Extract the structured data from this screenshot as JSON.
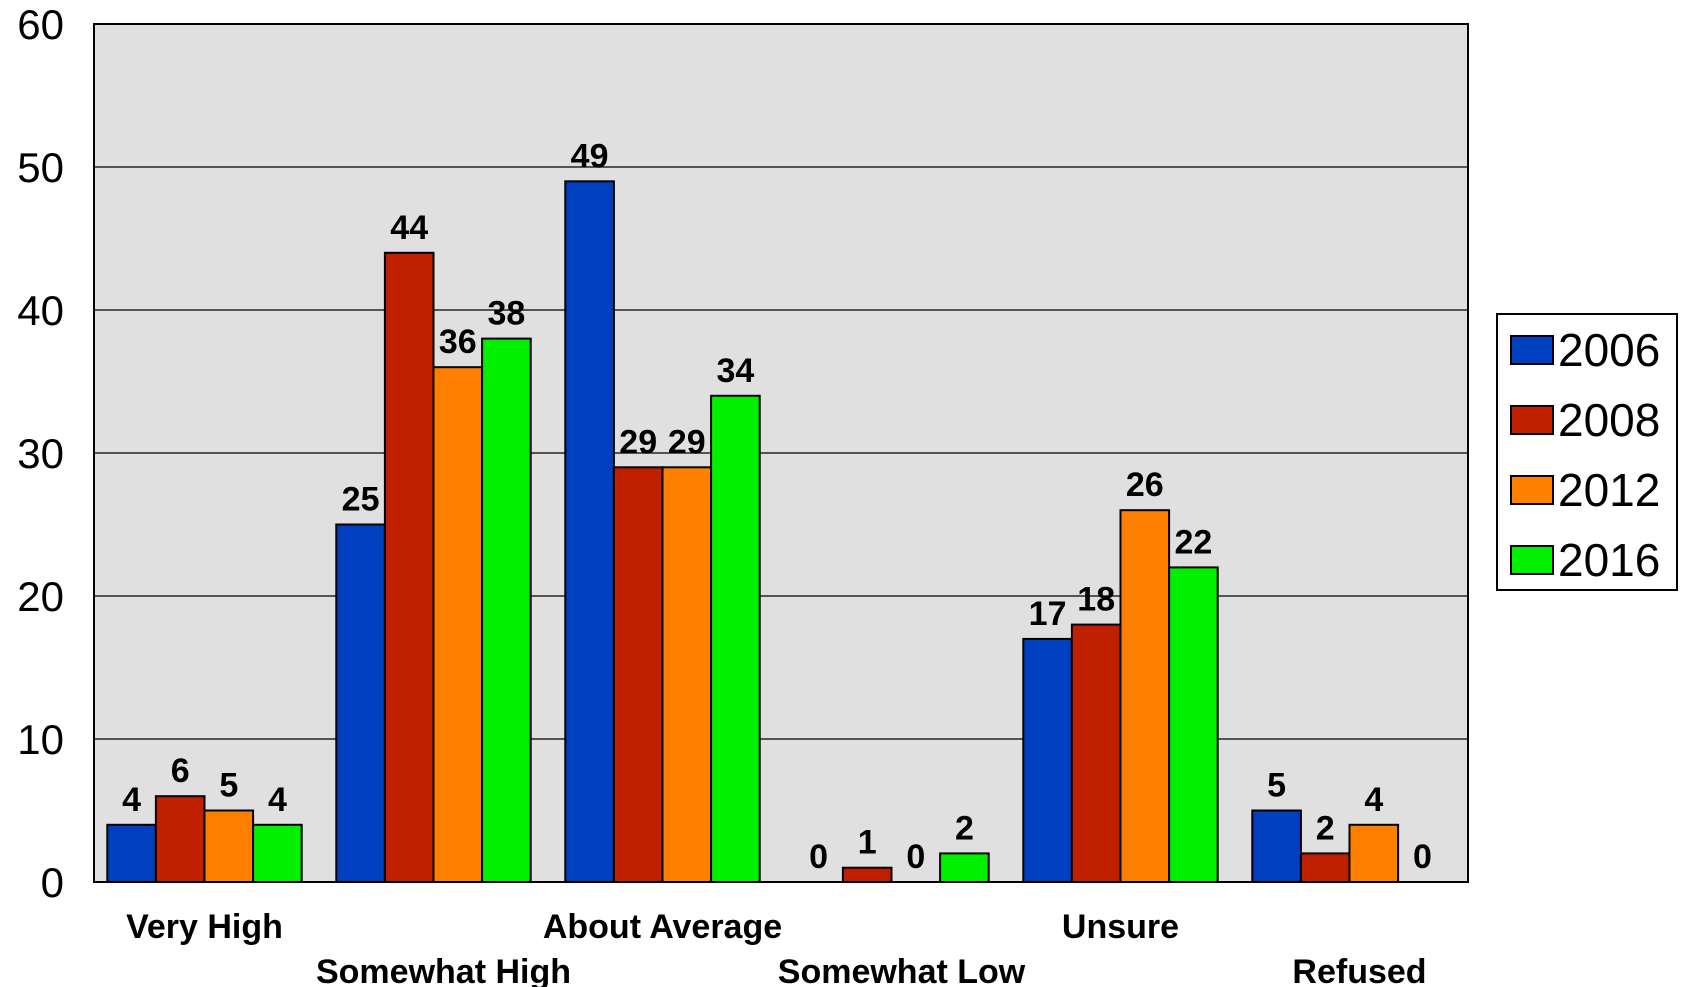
{
  "chart_data": {
    "type": "bar",
    "categories": [
      "Very High",
      "Somewhat High",
      "About Average",
      "Somewhat Low",
      "Unsure",
      "Refused"
    ],
    "series": [
      {
        "name": "2006",
        "color": "#0040c0",
        "values": [
          4,
          25,
          49,
          0,
          17,
          5
        ]
      },
      {
        "name": "2008",
        "color": "#c02000",
        "values": [
          6,
          44,
          29,
          1,
          18,
          2
        ]
      },
      {
        "name": "2012",
        "color": "#ff8000",
        "values": [
          5,
          36,
          29,
          0,
          26,
          4
        ]
      },
      {
        "name": "2016",
        "color": "#00f000",
        "values": [
          4,
          38,
          34,
          2,
          22,
          0
        ]
      }
    ],
    "yticks": [
      "0",
      "10",
      "20",
      "30",
      "40",
      "50",
      "60"
    ],
    "ylim": [
      0,
      60
    ],
    "grid": true,
    "legend": "right",
    "plot_background": "#e0e0e0"
  }
}
